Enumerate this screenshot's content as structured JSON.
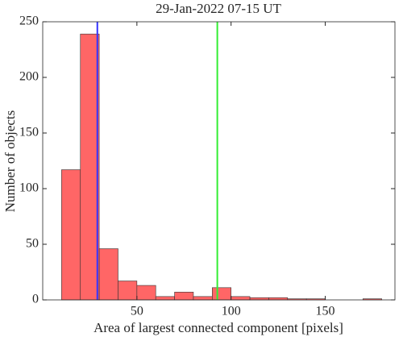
{
  "chart_data": {
    "type": "histogram",
    "title": "29-Jan-2022 07-15 UT",
    "x_label": "Area of largest connected component [pixels]",
    "y_label": "Number of objects",
    "bins": [
      10,
      20,
      30,
      40,
      50,
      60,
      70,
      80,
      90,
      100,
      110,
      120,
      130,
      140,
      150,
      160,
      170,
      180
    ],
    "values": [
      117,
      239,
      46,
      17,
      13,
      3,
      7,
      3,
      11,
      3,
      2,
      2,
      1,
      1,
      0,
      0,
      1
    ],
    "color": "#ff6666",
    "xlim": [
      0,
      187
    ],
    "xticks": [
      50,
      100,
      150
    ],
    "ylim": [
      0,
      250
    ],
    "yticks": [
      0,
      50,
      100,
      150,
      200,
      250
    ],
    "vlines": [
      {
        "x": 29,
        "color": "#3333ff"
      },
      {
        "x": 92.7,
        "color": "#33ee33"
      }
    ]
  }
}
